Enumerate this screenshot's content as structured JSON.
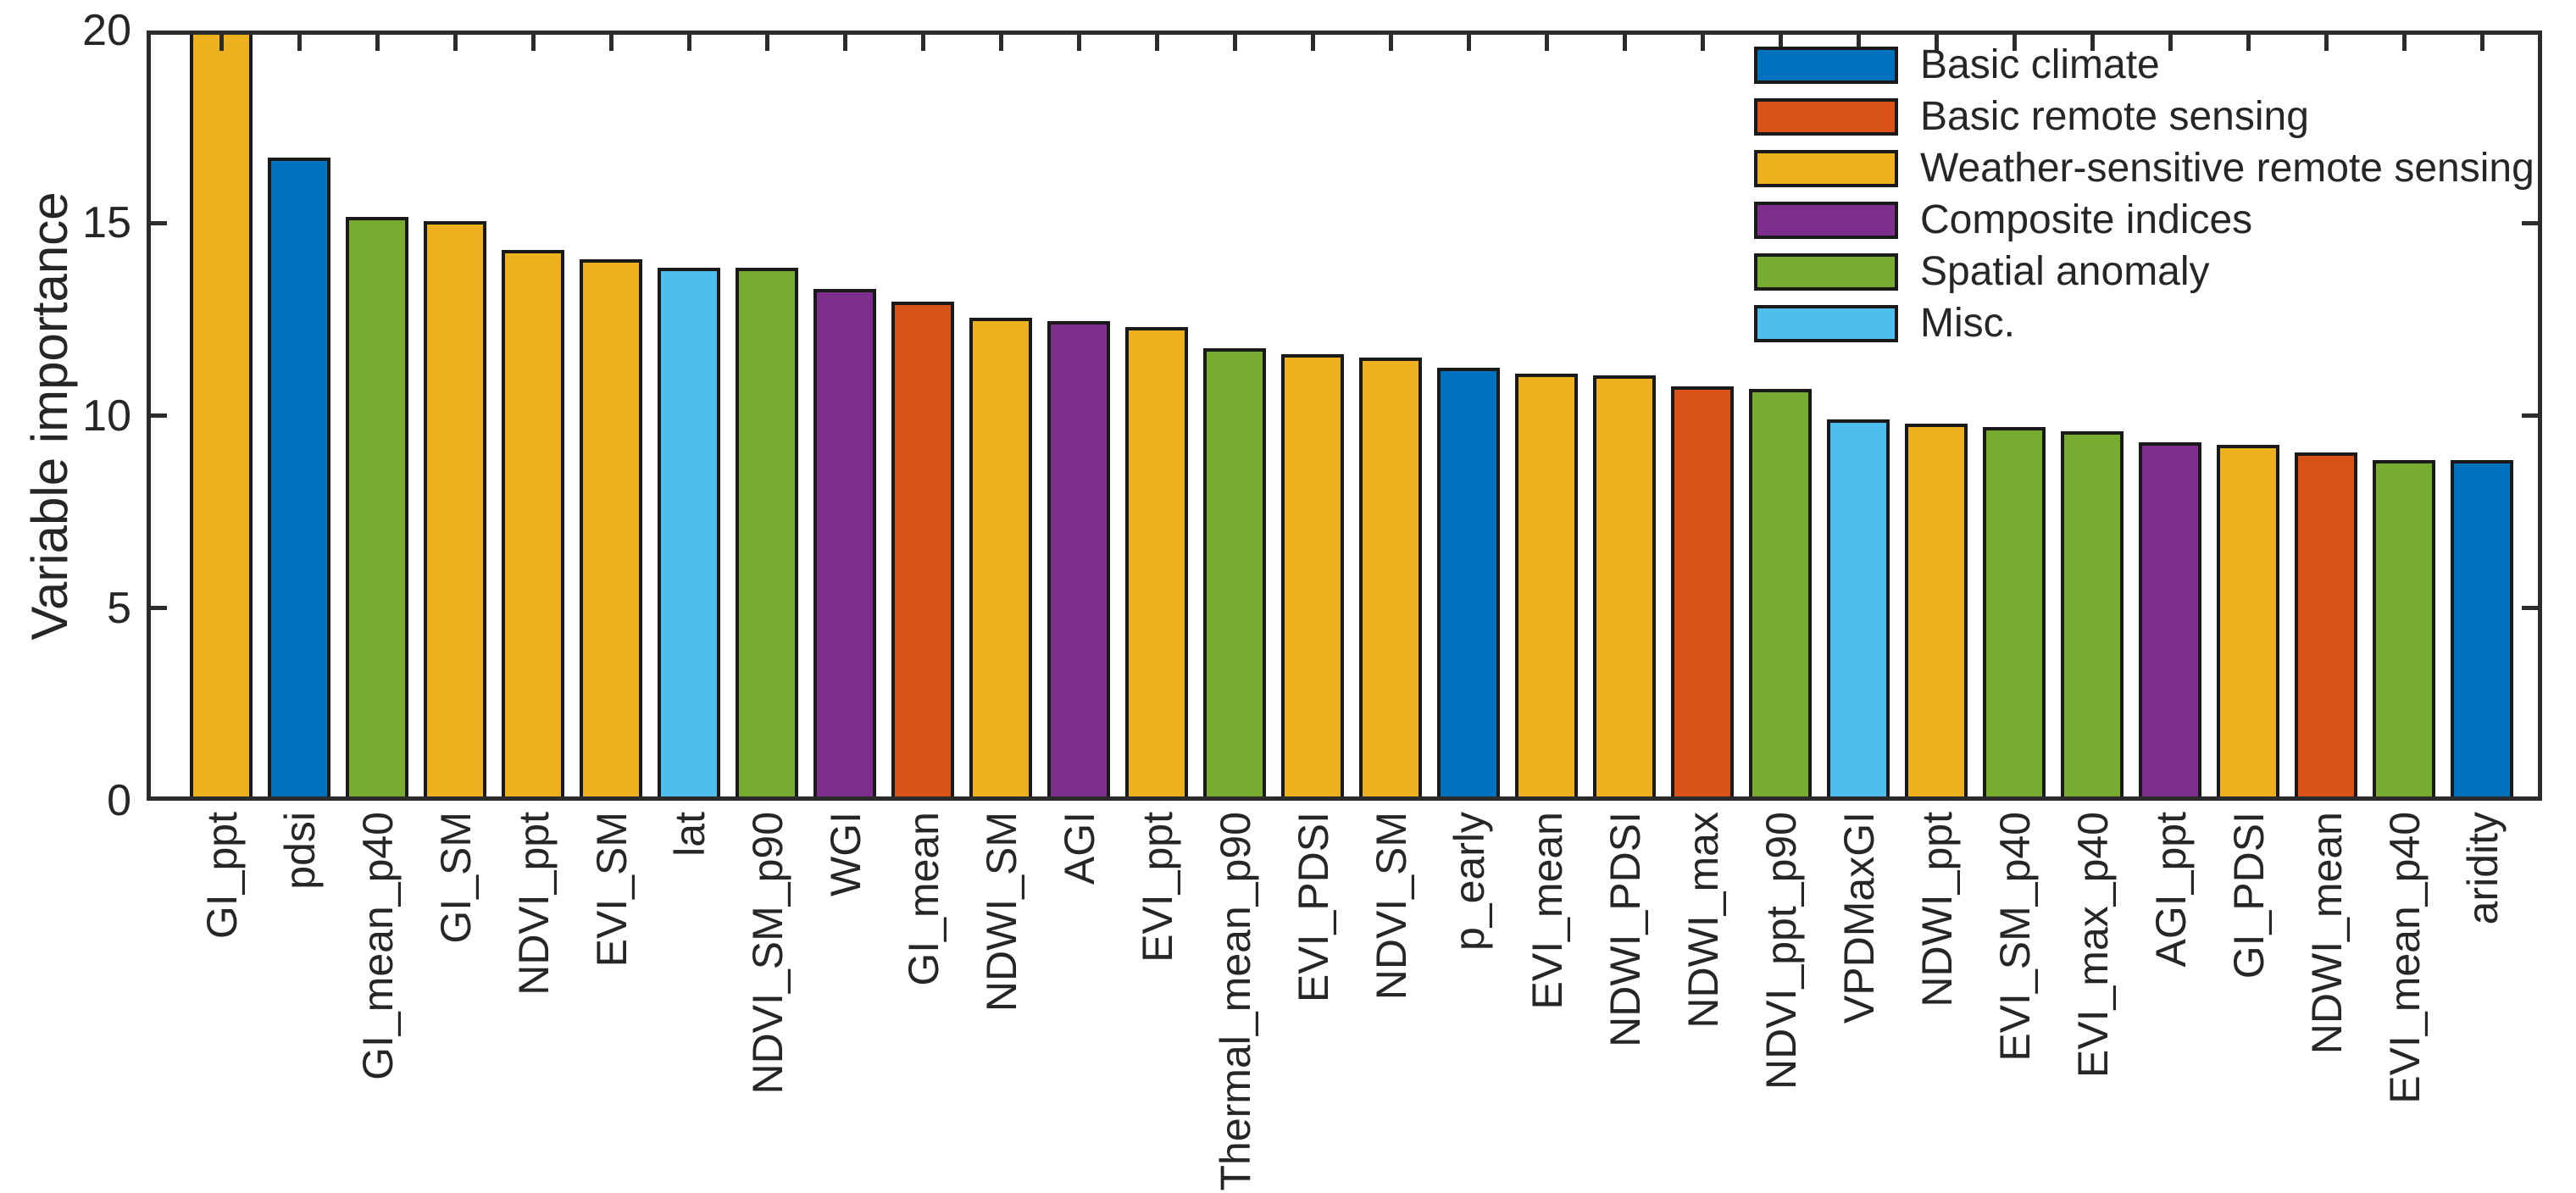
{
  "figure": {
    "background": "#ffffff",
    "axis_color": "#2b2b2b",
    "bar_edge_color": "#1a1a1a",
    "ylabel": "Variable importance"
  },
  "legend": {
    "position": "top-right",
    "items": [
      {
        "key": "basic_climate",
        "label": "Basic climate",
        "color": "#0072BD"
      },
      {
        "key": "basic_remote_sensing",
        "label": "Basic remote sensing",
        "color": "#D95319"
      },
      {
        "key": "weather_sensitive_remote_sensing",
        "label": "Weather-sensitive remote sensing",
        "color": "#EDB120"
      },
      {
        "key": "composite_indices",
        "label": "Composite indices",
        "color": "#7E2F8E"
      },
      {
        "key": "spatial_anomaly",
        "label": "Spatial anomaly",
        "color": "#77AC30"
      },
      {
        "key": "misc",
        "label": "Misc.",
        "color": "#4DBEEE"
      }
    ]
  },
  "chart_data": {
    "type": "bar",
    "title": "",
    "xlabel": "",
    "ylabel": "Variable importance",
    "ylim": [
      0,
      20
    ],
    "yticks": [
      0,
      5,
      10,
      15,
      20
    ],
    "side_tick_values": [
      5,
      10,
      15
    ],
    "grid": false,
    "legend_position": "top-right",
    "note": "First bar (GI_ppt) reaches the y-axis maximum and is clipped at 20.",
    "categories": [
      "GI_ppt",
      "pdsi",
      "GI_mean_p40",
      "GI_SM",
      "NDVI_ppt",
      "EVI_SM",
      "lat",
      "NDVI_SM_p90",
      "WGI",
      "GI_mean",
      "NDWI_SM",
      "AGI",
      "EVI_ppt",
      "Thermal_mean_p90",
      "EVI_PDSI",
      "NDVI_SM",
      "p_early",
      "EVI_mean",
      "NDWI_PDSI",
      "NDWI_max",
      "NDVI_ppt_p90",
      "VPDMaxGI",
      "NDWI_ppt",
      "EVI_SM_p40",
      "EVI_max_p40",
      "AGI_ppt",
      "GI_PDSI",
      "NDWI_mean",
      "EVI_mean_p40",
      "aridity"
    ],
    "values": [
      20.0,
      16.7,
      15.15,
      15.05,
      14.3,
      14.05,
      13.85,
      13.85,
      13.3,
      12.95,
      12.55,
      12.45,
      12.3,
      11.75,
      11.6,
      11.5,
      11.25,
      11.1,
      11.05,
      10.75,
      10.7,
      9.9,
      9.8,
      9.7,
      9.6,
      9.3,
      9.25,
      9.05,
      8.85,
      8.85
    ],
    "bar_groups": [
      "weather_sensitive_remote_sensing",
      "basic_climate",
      "spatial_anomaly",
      "weather_sensitive_remote_sensing",
      "weather_sensitive_remote_sensing",
      "weather_sensitive_remote_sensing",
      "misc",
      "spatial_anomaly",
      "composite_indices",
      "basic_remote_sensing",
      "weather_sensitive_remote_sensing",
      "composite_indices",
      "weather_sensitive_remote_sensing",
      "spatial_anomaly",
      "weather_sensitive_remote_sensing",
      "weather_sensitive_remote_sensing",
      "basic_climate",
      "weather_sensitive_remote_sensing",
      "weather_sensitive_remote_sensing",
      "basic_remote_sensing",
      "spatial_anomaly",
      "misc",
      "weather_sensitive_remote_sensing",
      "spatial_anomaly",
      "spatial_anomaly",
      "composite_indices",
      "weather_sensitive_remote_sensing",
      "basic_remote_sensing",
      "spatial_anomaly",
      "basic_climate"
    ]
  }
}
